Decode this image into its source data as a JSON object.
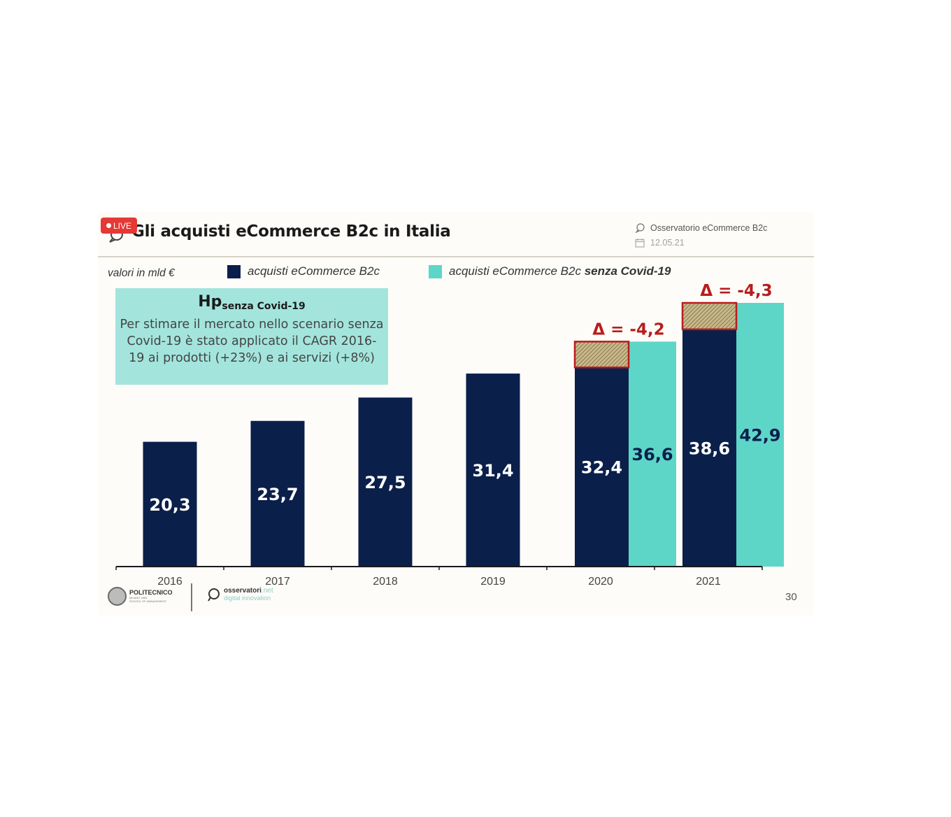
{
  "badge": {
    "live": "LIVE"
  },
  "header": {
    "title": "Gli acquisti eCommerce B2c in Italia",
    "source": "Osservatorio eCommerce B2c",
    "date": "12.05.21"
  },
  "units_label": "valori in mld €",
  "legend": {
    "series1": "acquisti eCommerce B2c",
    "series2_prefix": "acquisti eCommerce B2c ",
    "series2_bold": "senza Covid-19"
  },
  "hp_box": {
    "title": "Hp",
    "title_sub": "senza Covid-19",
    "text": "Per stimare il mercato nello scenario senza Covid-19 è stato applicato il CAGR 2016-19 ai prodotti (+23%) e ai servizi (+8%)"
  },
  "colors": {
    "navy": "#0b1f4b",
    "teal": "#5dd6c8",
    "delta_red": "#b81c1c",
    "hatch": "#c9b98a"
  },
  "chart_data": {
    "type": "bar",
    "categories": [
      "2016",
      "2017",
      "2018",
      "2019",
      "2020",
      "2021"
    ],
    "series": [
      {
        "name": "acquisti eCommerce B2c",
        "values": [
          20.3,
          23.7,
          27.5,
          31.4,
          32.4,
          38.6
        ],
        "labels": [
          "20,3",
          "23,7",
          "27,5",
          "31,4",
          "32,4",
          "38,6"
        ]
      },
      {
        "name": "acquisti eCommerce B2c senza Covid-19",
        "values": [
          null,
          null,
          null,
          null,
          36.6,
          42.9
        ],
        "labels": [
          "",
          "",
          "",
          "",
          "36,6",
          "42,9"
        ]
      }
    ],
    "deltas": [
      {
        "category": "2020",
        "value": -4.2,
        "label": "Δ = -4,2"
      },
      {
        "category": "2021",
        "value": -4.3,
        "label": "Δ = -4,3"
      }
    ],
    "ylim": [
      0,
      42.9
    ],
    "grid": false,
    "legend_position": "top"
  },
  "footer": {
    "logo1_name": "POLITECNICO",
    "logo1_sub": "MILANO 1863",
    "logo1_sub2": "SCHOOL OF MANAGEMENT",
    "logo2_name": "osservatori",
    "logo2_suffix": ".net",
    "logo2_sub": "digital innovation",
    "page": "30"
  }
}
